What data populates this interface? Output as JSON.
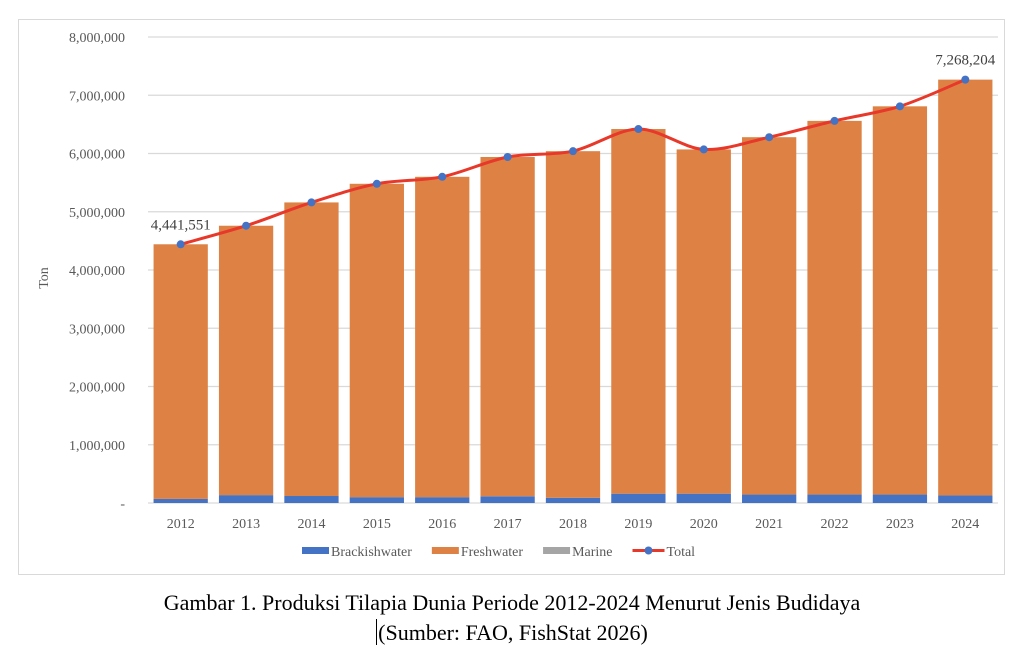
{
  "chart_data": {
    "type": "bar",
    "stacked": true,
    "title": "",
    "xlabel": "",
    "ylabel": "Ton",
    "ylim": [
      0,
      8000000
    ],
    "yticks": [
      0,
      1000000,
      2000000,
      3000000,
      4000000,
      5000000,
      6000000,
      7000000,
      8000000
    ],
    "ytick_labels": [
      "-",
      "1,000,000",
      "2,000,000",
      "3,000,000",
      "4,000,000",
      "5,000,000",
      "6,000,000",
      "7,000,000",
      "8,000,000"
    ],
    "grid": true,
    "legend_position": "bottom",
    "categories": [
      "2012",
      "2013",
      "2014",
      "2015",
      "2016",
      "2017",
      "2018",
      "2019",
      "2020",
      "2021",
      "2022",
      "2023",
      "2024"
    ],
    "series": [
      {
        "name": "Brackishwater",
        "type": "bar",
        "color": "#4472c4",
        "values": [
          70000,
          135000,
          120000,
          100000,
          100000,
          115000,
          90000,
          160000,
          160000,
          145000,
          145000,
          145000,
          130000
        ]
      },
      {
        "name": "Freshwater",
        "type": "bar",
        "color": "#dd8244",
        "values": [
          4371551,
          4625000,
          5040000,
          5380000,
          5500000,
          5825000,
          5950000,
          6260000,
          5910000,
          6135000,
          6415000,
          6665000,
          7138204
        ]
      },
      {
        "name": "Marine",
        "type": "bar",
        "color": "#a5a5a5",
        "values": [
          0,
          0,
          0,
          0,
          0,
          0,
          0,
          0,
          0,
          0,
          0,
          0,
          0
        ]
      },
      {
        "name": "Total",
        "type": "line",
        "color": "#e8382a",
        "marker_color": "#4472c4",
        "values": [
          4441551,
          4760000,
          5160000,
          5480000,
          5600000,
          5940000,
          6040000,
          6420000,
          6070000,
          6280000,
          6560000,
          6810000,
          7268204
        ]
      }
    ],
    "annotations": [
      {
        "category": "2012",
        "text": "4,441,551"
      },
      {
        "category": "2024",
        "text": "7,268,204"
      }
    ]
  },
  "caption": {
    "line1": "Gambar 1. Produksi Tilapia Dunia Periode 2012-2024 Menurut Jenis Budidaya",
    "line2": "(Sumber: FAO, FishStat 2026)"
  }
}
